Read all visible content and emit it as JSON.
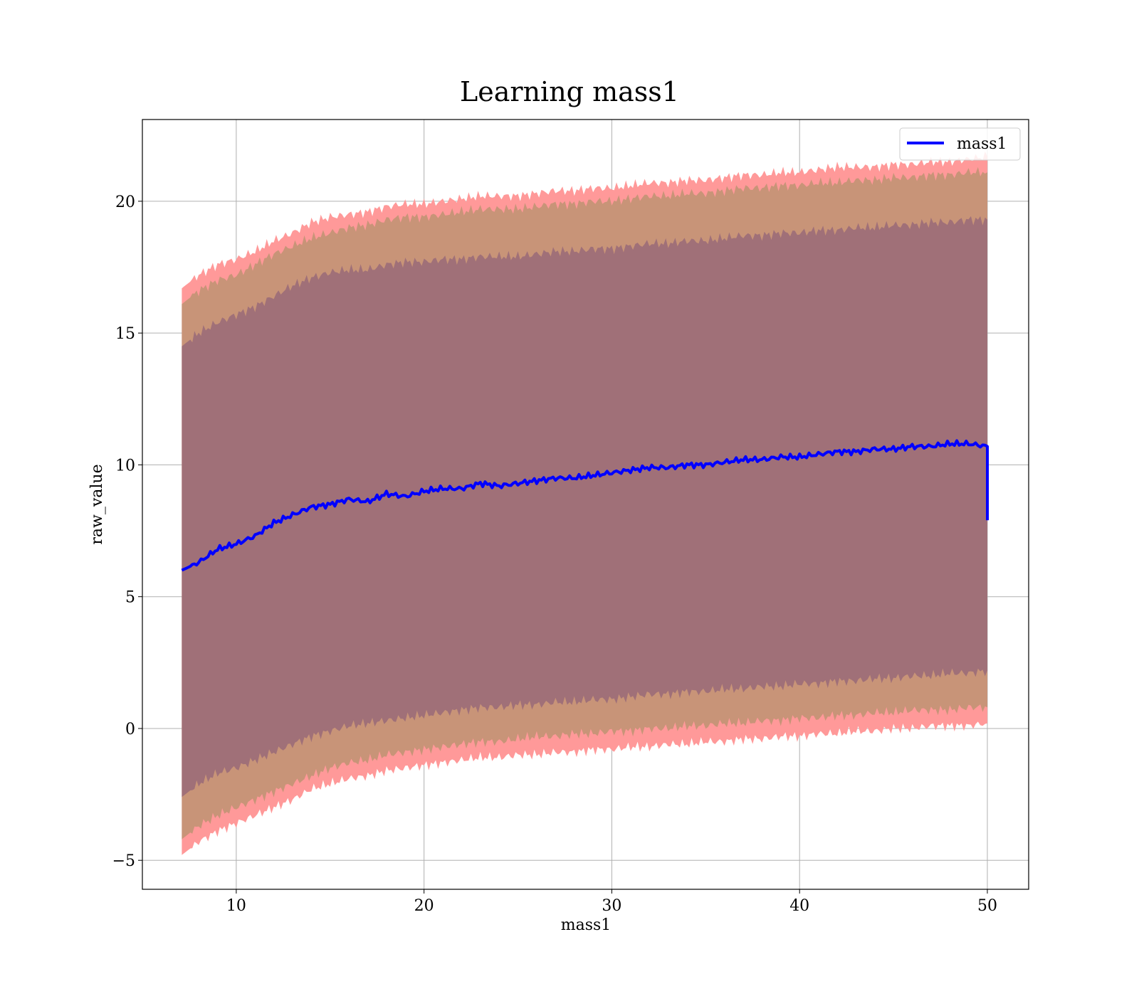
{
  "chart_data": {
    "type": "line",
    "title": "Learning mass1",
    "xlabel": "mass1",
    "ylabel": "raw_value",
    "xlim": [
      5,
      52.2
    ],
    "ylim": [
      -6.1,
      23.1
    ],
    "xticks": [
      10,
      20,
      30,
      40,
      50
    ],
    "yticks": [
      -5,
      0,
      5,
      10,
      15,
      20
    ],
    "ytick_labels": [
      "−5",
      "0",
      "5",
      "10",
      "15",
      "20"
    ],
    "grid": true,
    "legend": {
      "position": "top-right",
      "entries": [
        "mass1"
      ]
    },
    "colors": {
      "line": "#0000ff",
      "band_outer": "#ff9999",
      "band_middle": "#c89478",
      "band_inner": "#a07078",
      "grid": "#b0b0b0"
    },
    "series": [
      {
        "name": "mass1",
        "x": [
          7.1,
          8,
          9,
          10,
          11,
          12,
          13,
          14,
          15,
          16,
          17,
          18,
          19,
          20,
          21,
          22,
          23,
          24,
          25,
          26,
          27,
          28,
          29,
          30,
          31,
          32,
          33,
          34,
          35,
          36,
          37,
          38,
          39,
          40,
          41,
          42,
          43,
          44,
          45,
          46,
          47,
          48,
          49,
          50
        ],
        "values": [
          6.0,
          6.3,
          6.8,
          7.0,
          7.3,
          7.8,
          8.1,
          8.4,
          8.5,
          8.7,
          8.6,
          8.9,
          8.8,
          9.0,
          9.1,
          9.1,
          9.3,
          9.2,
          9.3,
          9.4,
          9.5,
          9.5,
          9.6,
          9.7,
          9.8,
          9.9,
          9.9,
          10.0,
          10.0,
          10.1,
          10.2,
          10.2,
          10.3,
          10.3,
          10.4,
          10.5,
          10.5,
          10.6,
          10.6,
          10.7,
          10.7,
          10.8,
          10.8,
          10.7
        ],
        "end_drop": 7.9
      }
    ],
    "bands": [
      {
        "level": "outer",
        "upper": [
          16.7,
          17.2,
          17.6,
          17.8,
          18.1,
          18.5,
          18.8,
          19.2,
          19.4,
          19.5,
          19.6,
          19.8,
          19.9,
          19.9,
          20.0,
          20.1,
          20.2,
          20.2,
          20.2,
          20.3,
          20.4,
          20.4,
          20.5,
          20.5,
          20.6,
          20.7,
          20.7,
          20.8,
          20.8,
          20.9,
          21.0,
          21.0,
          21.1,
          21.1,
          21.2,
          21.3,
          21.3,
          21.3,
          21.4,
          21.4,
          21.5,
          21.5,
          21.6,
          21.7
        ],
        "lower": [
          -4.8,
          -4.3,
          -3.9,
          -3.6,
          -3.3,
          -3.0,
          -2.7,
          -2.3,
          -2.1,
          -1.9,
          -1.8,
          -1.6,
          -1.5,
          -1.4,
          -1.3,
          -1.2,
          -1.1,
          -1.1,
          -1.0,
          -1.0,
          -0.9,
          -0.9,
          -0.8,
          -0.8,
          -0.7,
          -0.7,
          -0.6,
          -0.6,
          -0.5,
          -0.5,
          -0.4,
          -0.4,
          -0.3,
          -0.3,
          -0.2,
          -0.2,
          -0.1,
          -0.1,
          0.0,
          0.0,
          0.1,
          0.1,
          0.1,
          0.2
        ]
      },
      {
        "level": "middle",
        "upper": [
          16.1,
          16.6,
          17.0,
          17.2,
          17.6,
          18.0,
          18.3,
          18.6,
          18.8,
          19.0,
          19.1,
          19.3,
          19.4,
          19.4,
          19.5,
          19.6,
          19.7,
          19.7,
          19.7,
          19.8,
          19.9,
          19.9,
          20.0,
          20.0,
          20.1,
          20.2,
          20.2,
          20.3,
          20.3,
          20.4,
          20.5,
          20.5,
          20.6,
          20.6,
          20.7,
          20.7,
          20.8,
          20.8,
          20.9,
          20.9,
          21.0,
          21.0,
          21.1,
          21.1
        ],
        "lower": [
          -4.2,
          -3.7,
          -3.3,
          -3.0,
          -2.7,
          -2.4,
          -2.1,
          -1.8,
          -1.5,
          -1.3,
          -1.2,
          -1.0,
          -0.9,
          -0.8,
          -0.7,
          -0.6,
          -0.5,
          -0.5,
          -0.4,
          -0.3,
          -0.3,
          -0.2,
          -0.2,
          -0.1,
          -0.1,
          0.0,
          0.0,
          0.1,
          0.1,
          0.2,
          0.2,
          0.3,
          0.3,
          0.4,
          0.4,
          0.5,
          0.5,
          0.6,
          0.6,
          0.7,
          0.7,
          0.7,
          0.8,
          0.8
        ]
      },
      {
        "level": "inner",
        "upper": [
          14.5,
          15.0,
          15.4,
          15.7,
          16.0,
          16.4,
          16.8,
          17.1,
          17.3,
          17.4,
          17.4,
          17.6,
          17.7,
          17.7,
          17.8,
          17.8,
          17.9,
          17.9,
          17.9,
          18.0,
          18.1,
          18.1,
          18.2,
          18.2,
          18.3,
          18.4,
          18.4,
          18.5,
          18.5,
          18.6,
          18.7,
          18.7,
          18.8,
          18.8,
          18.9,
          18.9,
          19.0,
          19.0,
          19.1,
          19.1,
          19.2,
          19.2,
          19.3,
          19.3
        ],
        "lower": [
          -2.6,
          -2.1,
          -1.7,
          -1.5,
          -1.2,
          -0.9,
          -0.6,
          -0.3,
          -0.1,
          0.1,
          0.2,
          0.3,
          0.4,
          0.5,
          0.6,
          0.7,
          0.8,
          0.8,
          0.9,
          0.9,
          1.0,
          1.0,
          1.1,
          1.1,
          1.2,
          1.3,
          1.3,
          1.4,
          1.4,
          1.5,
          1.5,
          1.6,
          1.6,
          1.7,
          1.7,
          1.8,
          1.8,
          1.9,
          1.9,
          2.0,
          2.0,
          2.1,
          2.1,
          2.2
        ]
      }
    ]
  }
}
